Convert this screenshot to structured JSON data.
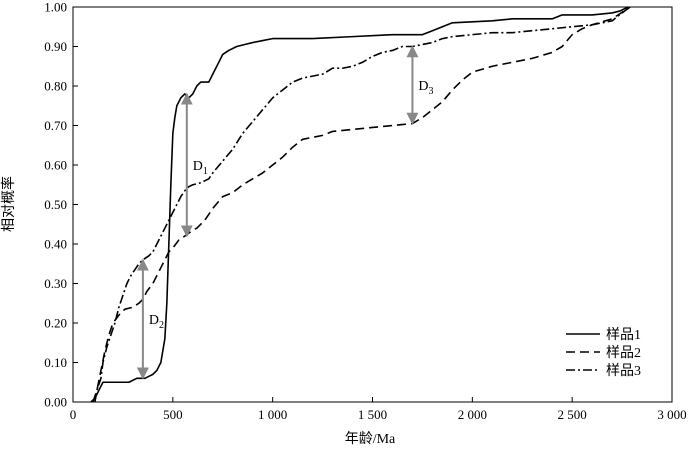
{
  "chart_data": {
    "type": "line",
    "xlabel": "年龄/Ma",
    "ylabel": "相对概率",
    "xlim": [
      0,
      3000
    ],
    "ylim": [
      0,
      1
    ],
    "xticks": [
      0,
      500,
      1000,
      1500,
      2000,
      2500,
      3000
    ],
    "xtick_labels": [
      "0",
      "500",
      "1 000",
      "1 500",
      "2 000",
      "2 500",
      "3 000"
    ],
    "yticks": [
      0,
      0.1,
      0.2,
      0.3,
      0.4,
      0.5,
      0.6,
      0.7,
      0.8,
      0.9,
      1.0
    ],
    "ytick_labels": [
      "0.00",
      "0.10",
      "0.20",
      "0.30",
      "0.40",
      "0.50",
      "0.60",
      "0.70",
      "0.80",
      "0.90",
      "1.00"
    ],
    "grid": false,
    "legend_position": "bottom-right",
    "series": [
      {
        "name": "样品1",
        "style": "solid",
        "points": [
          [
            90,
            0
          ],
          [
            100,
            0.005
          ],
          [
            110,
            0.01
          ],
          [
            120,
            0.02
          ],
          [
            140,
            0.04
          ],
          [
            150,
            0.05
          ],
          [
            180,
            0.05
          ],
          [
            200,
            0.05
          ],
          [
            250,
            0.05
          ],
          [
            280,
            0.05
          ],
          [
            300,
            0.055
          ],
          [
            320,
            0.06
          ],
          [
            340,
            0.06
          ],
          [
            360,
            0.06
          ],
          [
            380,
            0.065
          ],
          [
            400,
            0.07
          ],
          [
            420,
            0.08
          ],
          [
            440,
            0.1
          ],
          [
            450,
            0.13
          ],
          [
            460,
            0.16
          ],
          [
            470,
            0.25
          ],
          [
            480,
            0.4
          ],
          [
            490,
            0.55
          ],
          [
            500,
            0.68
          ],
          [
            510,
            0.72
          ],
          [
            520,
            0.75
          ],
          [
            530,
            0.76
          ],
          [
            540,
            0.77
          ],
          [
            550,
            0.775
          ],
          [
            560,
            0.78
          ],
          [
            570,
            0.775
          ],
          [
            580,
            0.77
          ],
          [
            600,
            0.78
          ],
          [
            620,
            0.8
          ],
          [
            640,
            0.81
          ],
          [
            680,
            0.81
          ],
          [
            700,
            0.83
          ],
          [
            730,
            0.86
          ],
          [
            750,
            0.88
          ],
          [
            780,
            0.89
          ],
          [
            820,
            0.9
          ],
          [
            860,
            0.905
          ],
          [
            900,
            0.91
          ],
          [
            950,
            0.915
          ],
          [
            1000,
            0.92
          ],
          [
            1100,
            0.92
          ],
          [
            1200,
            0.92
          ],
          [
            1400,
            0.925
          ],
          [
            1600,
            0.93
          ],
          [
            1750,
            0.93
          ],
          [
            1800,
            0.94
          ],
          [
            1850,
            0.95
          ],
          [
            1900,
            0.96
          ],
          [
            2100,
            0.965
          ],
          [
            2200,
            0.97
          ],
          [
            2400,
            0.97
          ],
          [
            2450,
            0.98
          ],
          [
            2600,
            0.98
          ],
          [
            2700,
            0.985
          ],
          [
            2740,
            0.99
          ],
          [
            2780,
            1.0
          ]
        ]
      },
      {
        "name": "样品2",
        "style": "dashed",
        "points": [
          [
            100,
            0
          ],
          [
            120,
            0.03
          ],
          [
            140,
            0.08
          ],
          [
            160,
            0.13
          ],
          [
            180,
            0.17
          ],
          [
            200,
            0.2
          ],
          [
            230,
            0.22
          ],
          [
            260,
            0.235
          ],
          [
            300,
            0.24
          ],
          [
            330,
            0.25
          ],
          [
            350,
            0.26
          ],
          [
            370,
            0.28
          ],
          [
            400,
            0.3
          ],
          [
            420,
            0.32
          ],
          [
            440,
            0.34
          ],
          [
            460,
            0.36
          ],
          [
            480,
            0.38
          ],
          [
            500,
            0.39
          ],
          [
            530,
            0.41
          ],
          [
            560,
            0.42
          ],
          [
            600,
            0.435
          ],
          [
            620,
            0.44
          ],
          [
            660,
            0.46
          ],
          [
            700,
            0.49
          ],
          [
            750,
            0.52
          ],
          [
            800,
            0.53
          ],
          [
            850,
            0.55
          ],
          [
            900,
            0.565
          ],
          [
            950,
            0.58
          ],
          [
            1000,
            0.6
          ],
          [
            1050,
            0.62
          ],
          [
            1100,
            0.645
          ],
          [
            1150,
            0.665
          ],
          [
            1200,
            0.67
          ],
          [
            1250,
            0.675
          ],
          [
            1300,
            0.685
          ],
          [
            1400,
            0.69
          ],
          [
            1500,
            0.695
          ],
          [
            1600,
            0.7
          ],
          [
            1700,
            0.705
          ],
          [
            1750,
            0.72
          ],
          [
            1800,
            0.74
          ],
          [
            1850,
            0.76
          ],
          [
            1900,
            0.79
          ],
          [
            1950,
            0.815
          ],
          [
            2000,
            0.835
          ],
          [
            2100,
            0.85
          ],
          [
            2200,
            0.86
          ],
          [
            2300,
            0.87
          ],
          [
            2400,
            0.885
          ],
          [
            2450,
            0.9
          ],
          [
            2500,
            0.93
          ],
          [
            2550,
            0.945
          ],
          [
            2600,
            0.955
          ],
          [
            2700,
            0.97
          ],
          [
            2760,
            0.99
          ],
          [
            2790,
            1.0
          ]
        ]
      },
      {
        "name": "样品3",
        "style": "dashdot",
        "points": [
          [
            110,
            0
          ],
          [
            120,
            0.03
          ],
          [
            140,
            0.06
          ],
          [
            150,
            0.1
          ],
          [
            170,
            0.14
          ],
          [
            190,
            0.17
          ],
          [
            210,
            0.2
          ],
          [
            230,
            0.24
          ],
          [
            250,
            0.27
          ],
          [
            270,
            0.3
          ],
          [
            290,
            0.32
          ],
          [
            310,
            0.335
          ],
          [
            330,
            0.35
          ],
          [
            350,
            0.36
          ],
          [
            380,
            0.37
          ],
          [
            400,
            0.38
          ],
          [
            420,
            0.4
          ],
          [
            440,
            0.42
          ],
          [
            460,
            0.44
          ],
          [
            480,
            0.46
          ],
          [
            500,
            0.48
          ],
          [
            520,
            0.5
          ],
          [
            540,
            0.52
          ],
          [
            560,
            0.535
          ],
          [
            580,
            0.545
          ],
          [
            600,
            0.55
          ],
          [
            640,
            0.555
          ],
          [
            680,
            0.565
          ],
          [
            700,
            0.58
          ],
          [
            750,
            0.61
          ],
          [
            800,
            0.64
          ],
          [
            850,
            0.68
          ],
          [
            900,
            0.71
          ],
          [
            950,
            0.74
          ],
          [
            1000,
            0.77
          ],
          [
            1050,
            0.79
          ],
          [
            1100,
            0.81
          ],
          [
            1150,
            0.82
          ],
          [
            1200,
            0.825
          ],
          [
            1250,
            0.83
          ],
          [
            1300,
            0.845
          ],
          [
            1350,
            0.845
          ],
          [
            1400,
            0.85
          ],
          [
            1450,
            0.86
          ],
          [
            1500,
            0.875
          ],
          [
            1550,
            0.885
          ],
          [
            1600,
            0.89
          ],
          [
            1650,
            0.9
          ],
          [
            1700,
            0.9
          ],
          [
            1750,
            0.905
          ],
          [
            1800,
            0.91
          ],
          [
            1850,
            0.92
          ],
          [
            1900,
            0.925
          ],
          [
            2000,
            0.93
          ],
          [
            2100,
            0.935
          ],
          [
            2200,
            0.935
          ],
          [
            2300,
            0.94
          ],
          [
            2400,
            0.945
          ],
          [
            2500,
            0.95
          ],
          [
            2600,
            0.955
          ],
          [
            2700,
            0.965
          ],
          [
            2750,
            0.985
          ],
          [
            2790,
            1.0
          ]
        ]
      }
    ],
    "annotations": [
      {
        "label": "D",
        "sub": "1",
        "x": 570,
        "y_top": 0.78,
        "y_bottom": 0.42,
        "color": "#888888"
      },
      {
        "label": "D",
        "sub": "2",
        "x": 350,
        "y_top": 0.36,
        "y_bottom": 0.06,
        "color": "#888888"
      },
      {
        "label": "D",
        "sub": "3",
        "x": 1700,
        "y_top": 0.9,
        "y_bottom": 0.705,
        "color": "#888888"
      }
    ]
  }
}
